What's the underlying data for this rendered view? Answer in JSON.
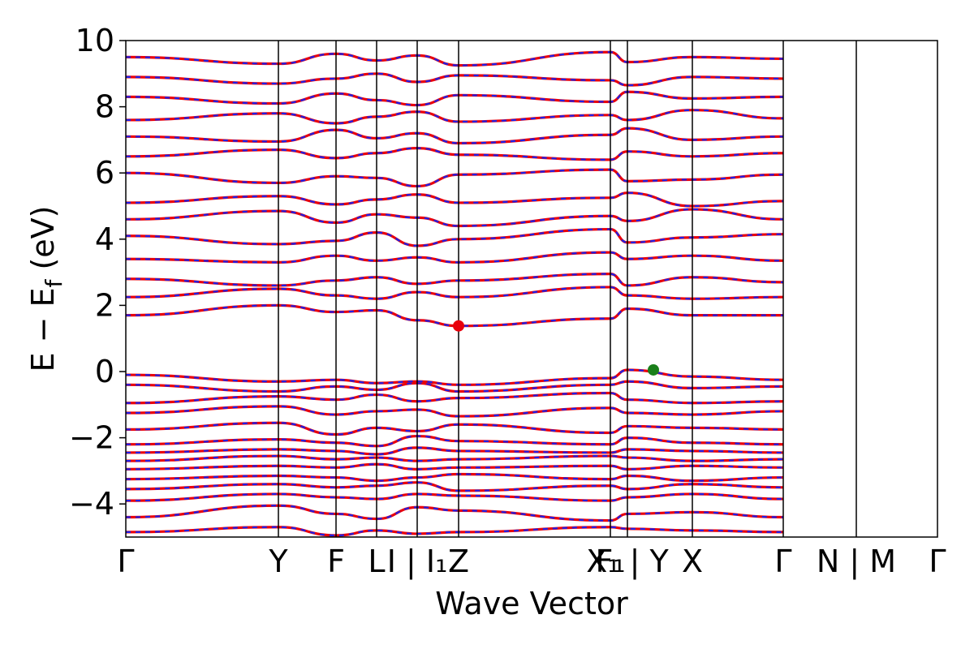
{
  "chart_data": {
    "type": "line",
    "title": "",
    "xlabel": "Wave Vector",
    "ylabel": "E − E_f (eV)",
    "ylabel_main": "E − E",
    "ylabel_sub": "f",
    "ylabel_unit": " (eV)",
    "ylim": [
      -5,
      10
    ],
    "xlim": [
      0,
      1
    ],
    "yticks": [
      -4,
      -2,
      0,
      2,
      4,
      6,
      8,
      10
    ],
    "ytick_labels": [
      "−4",
      "−2",
      "0",
      "2",
      "4",
      "6",
      "8",
      "10"
    ],
    "grid": false,
    "legend": "none",
    "kpoints": [
      {
        "pos": 0.0,
        "label": "Γ"
      },
      {
        "pos": 0.188,
        "label": "Y"
      },
      {
        "pos": 0.259,
        "label": "F"
      },
      {
        "pos": 0.309,
        "label": "L"
      },
      {
        "pos": 0.359,
        "label": "I | I₁"
      },
      {
        "pos": 0.41,
        "label": "Z"
      },
      {
        "pos": 0.597,
        "label": "F₁"
      },
      {
        "pos": 0.618,
        "label": "X₁ | Y"
      },
      {
        "pos": 0.698,
        "label": "X"
      },
      {
        "pos": 0.81,
        "label": "Γ"
      },
      {
        "pos": 0.9,
        "label": "N | M"
      },
      {
        "pos": 1.0,
        "label": "Γ"
      }
    ],
    "cbm": {
      "x": 0.41,
      "y": 1.38,
      "color": "#e8000b"
    },
    "vbm": {
      "x": 0.65,
      "y": 0.05,
      "color": "#1a7f1a"
    },
    "series": [
      {
        "role": "spin-up",
        "color": "#e8000b",
        "style": "solid"
      },
      {
        "role": "spin-down",
        "color": "#1f1fe6",
        "style": "dashed"
      }
    ],
    "bands": [
      [
        -4.85,
        -4.7,
        -4.95,
        -4.8,
        -4.9,
        -4.85,
        -4.7,
        -4.75,
        -4.8,
        -4.85
      ],
      [
        -4.4,
        -4.05,
        -4.3,
        -4.45,
        -4.1,
        -4.2,
        -4.5,
        -4.3,
        -4.25,
        -4.4
      ],
      [
        -3.9,
        -3.7,
        -3.8,
        -3.85,
        -3.7,
        -3.75,
        -3.9,
        -3.8,
        -3.7,
        -3.85
      ],
      [
        -3.55,
        -3.4,
        -3.5,
        -3.45,
        -3.35,
        -3.6,
        -3.45,
        -3.55,
        -3.4,
        -3.5
      ],
      [
        -3.25,
        -3.15,
        -3.2,
        -3.3,
        -3.2,
        -3.1,
        -3.25,
        -3.15,
        -3.3,
        -3.2
      ],
      [
        -2.95,
        -2.85,
        -2.9,
        -2.8,
        -2.95,
        -2.9,
        -2.85,
        -2.95,
        -2.85,
        -2.9
      ],
      [
        -2.7,
        -2.55,
        -2.65,
        -2.6,
        -2.7,
        -2.65,
        -2.55,
        -2.6,
        -2.7,
        -2.65
      ],
      [
        -2.45,
        -2.35,
        -2.4,
        -2.5,
        -2.3,
        -2.4,
        -2.45,
        -2.35,
        -2.4,
        -2.45
      ],
      [
        -2.2,
        -2.05,
        -2.15,
        -2.25,
        -1.95,
        -2.1,
        -2.2,
        -2.0,
        -2.15,
        -2.2
      ],
      [
        -1.75,
        -1.55,
        -1.9,
        -1.7,
        -1.8,
        -1.6,
        -1.85,
        -1.65,
        -1.7,
        -1.75
      ],
      [
        -1.25,
        -1.05,
        -1.3,
        -1.2,
        -1.15,
        -1.35,
        -1.1,
        -1.25,
        -1.3,
        -1.2
      ],
      [
        -0.95,
        -0.75,
        -0.85,
        -0.7,
        -0.9,
        -0.8,
        -0.65,
        -0.85,
        -0.95,
        -0.9
      ],
      [
        -0.4,
        -0.6,
        -0.45,
        -0.55,
        -0.35,
        -0.6,
        -0.4,
        -0.3,
        -0.5,
        -0.45
      ],
      [
        -0.1,
        -0.3,
        -0.25,
        -0.35,
        -0.3,
        -0.4,
        -0.2,
        0.05,
        -0.15,
        -0.25
      ],
      [
        1.7,
        2.0,
        1.8,
        1.85,
        1.55,
        1.38,
        1.6,
        1.9,
        1.7,
        1.7
      ],
      [
        2.25,
        2.5,
        2.3,
        2.2,
        2.4,
        2.25,
        2.55,
        2.3,
        2.2,
        2.25
      ],
      [
        2.8,
        2.6,
        2.75,
        2.85,
        2.65,
        2.75,
        2.95,
        2.6,
        2.85,
        2.7
      ],
      [
        3.4,
        3.3,
        3.5,
        3.35,
        3.45,
        3.3,
        3.6,
        3.4,
        3.5,
        3.35
      ],
      [
        4.1,
        3.85,
        3.95,
        4.2,
        3.8,
        4.0,
        4.3,
        3.9,
        4.05,
        4.15
      ],
      [
        4.6,
        4.85,
        4.5,
        4.75,
        4.65,
        4.4,
        4.7,
        4.55,
        4.9,
        4.6
      ],
      [
        5.1,
        5.3,
        5.05,
        5.2,
        5.35,
        5.1,
        5.25,
        5.4,
        5.0,
        5.15
      ],
      [
        6.0,
        5.7,
        5.9,
        5.85,
        5.6,
        5.95,
        6.1,
        5.75,
        5.8,
        5.95
      ],
      [
        6.5,
        6.7,
        6.45,
        6.6,
        6.75,
        6.55,
        6.4,
        6.65,
        6.5,
        6.6
      ],
      [
        7.1,
        6.95,
        7.3,
        7.05,
        7.2,
        6.9,
        7.15,
        7.35,
        7.0,
        7.1
      ],
      [
        7.6,
        7.8,
        7.5,
        7.7,
        7.85,
        7.55,
        7.75,
        7.6,
        7.9,
        7.65
      ],
      [
        8.3,
        8.1,
        8.4,
        8.2,
        8.05,
        8.35,
        8.15,
        8.45,
        8.25,
        8.3
      ],
      [
        8.9,
        8.7,
        8.85,
        9.0,
        8.75,
        8.95,
        8.8,
        8.65,
        8.9,
        8.85
      ],
      [
        9.5,
        9.3,
        9.6,
        9.4,
        9.55,
        9.25,
        9.65,
        9.35,
        9.5,
        9.45
      ]
    ]
  }
}
